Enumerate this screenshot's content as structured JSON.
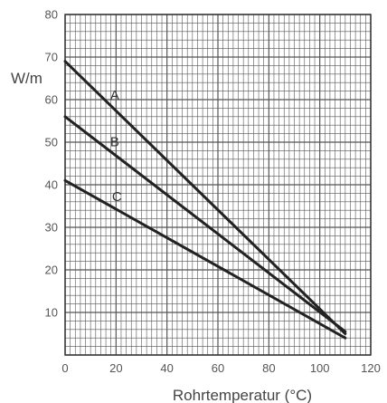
{
  "chart_data": {
    "type": "line",
    "title": "",
    "xlabel": "Rohrtemperatur (°C)",
    "ylabel": "W/m",
    "xlim": [
      0,
      120
    ],
    "ylim": [
      0,
      80
    ],
    "x_ticks": [
      "0",
      "20",
      "40",
      "60",
      "80",
      "100",
      "120"
    ],
    "y_ticks": [
      "10",
      "20",
      "30",
      "40",
      "50",
      "60",
      "70",
      "80"
    ],
    "grid": true,
    "series": [
      {
        "name": "A",
        "x": [
          0,
          110
        ],
        "y": [
          69,
          5
        ]
      },
      {
        "name": "B",
        "x": [
          0,
          110
        ],
        "y": [
          56,
          5.5
        ]
      },
      {
        "name": "C",
        "x": [
          0,
          110
        ],
        "y": [
          41,
          4
        ]
      }
    ],
    "colors": {
      "line": "#222222",
      "grid": "#555555",
      "text": "#555555"
    }
  }
}
